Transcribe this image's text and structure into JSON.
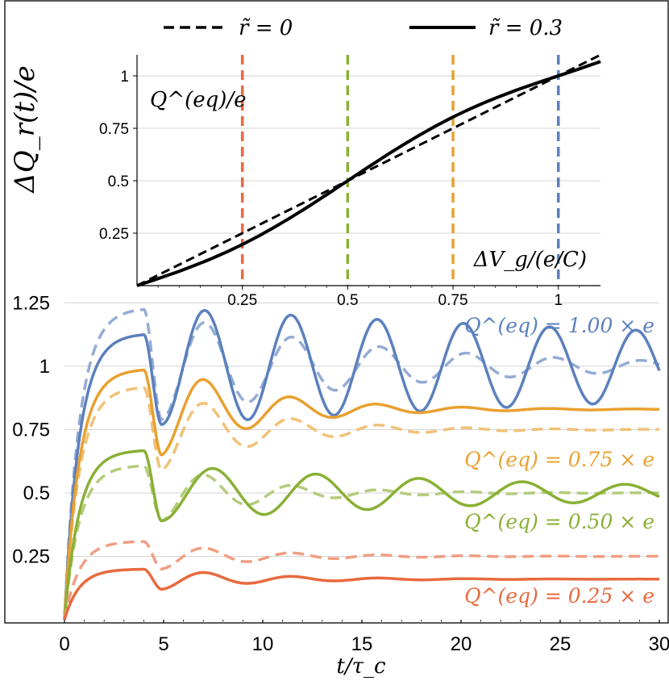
{
  "main_chart": {
    "type": "line",
    "ylabel": "ΔQ_r(t)/e",
    "xlabel": "t/τ_c",
    "xlim": [
      0,
      30
    ],
    "ylim": [
      0,
      1.35
    ],
    "x_ticks": [
      0,
      5,
      10,
      15,
      20,
      25,
      30
    ],
    "x_tick_labels": [
      "0",
      "5",
      "10",
      "15",
      "20",
      "25",
      "30"
    ],
    "y_ticks": [
      0.25,
      0.5,
      0.75,
      1,
      1.25
    ],
    "y_tick_labels": [
      "0.25",
      "0.5",
      "0.75",
      "1",
      "1.25"
    ],
    "grid": "horizontal",
    "series": [
      {
        "label": "Q^(eq) = 1.00 × e",
        "color": "#5b80bd",
        "qeq": 1.0,
        "solid": {
          "plateau": 1.13,
          "dip": 0.77,
          "final": 1.0,
          "amp": 0.2,
          "period": 4.35,
          "decay": 50
        },
        "dashed": {
          "plateau": 1.23,
          "dip": 0.79,
          "final": 1.0,
          "amp": 0.19,
          "period": 4.4,
          "decay": 11
        }
      },
      {
        "label": "Q^(eq) = 0.75 × e",
        "color": "#e9a030",
        "qeq": 0.75,
        "solid": {
          "plateau": 0.99,
          "dip": 0.65,
          "final": 0.83,
          "amp": 0.21,
          "period": 4.35,
          "decay": 5
        },
        "dashed": {
          "plateau": 0.92,
          "dip": 0.59,
          "final": 0.75,
          "amp": 0.18,
          "period": 4.4,
          "decay": 5
        }
      },
      {
        "label": "Q^(eq) = 0.50 × e",
        "color": "#8ab035",
        "qeq": 0.5,
        "solid": {
          "plateau": 0.67,
          "dip": 0.39,
          "final": 0.5,
          "amp": 0.12,
          "period": 5.2,
          "decay": 20
        },
        "dashed": {
          "plateau": 0.61,
          "dip": 0.39,
          "final": 0.5,
          "amp": 0.11,
          "period": 4.4,
          "decay": 5
        }
      },
      {
        "label": "Q^(eq) = 0.25 × e",
        "color": "#e86a3f",
        "qeq": 0.25,
        "solid": {
          "plateau": 0.2,
          "dip": 0.12,
          "final": 0.16,
          "amp": 0.04,
          "period": 4.4,
          "decay": 5
        },
        "dashed": {
          "plateau": 0.31,
          "dip": 0.2,
          "final": 0.25,
          "amp": 0.06,
          "period": 4.4,
          "decay": 5
        }
      }
    ]
  },
  "inset_chart": {
    "type": "line",
    "ylabel": "Q^(eq)/e",
    "xlabel": "ΔV_g/(e/C)",
    "xlim": [
      0,
      1.1
    ],
    "ylim": [
      0,
      1.1
    ],
    "x_ticks": [
      0.25,
      0.5,
      0.75,
      1
    ],
    "x_tick_labels": [
      "0.25",
      "0.5",
      "0.75",
      "1"
    ],
    "y_ticks": [
      0.25,
      0.5,
      0.75,
      1
    ],
    "y_tick_labels": [
      "0.25",
      "0.5",
      "0.75",
      "1"
    ],
    "grid": "horizontal",
    "vlines": [
      {
        "x": 0.25,
        "color": "#e86a3f"
      },
      {
        "x": 0.5,
        "color": "#8ab035"
      },
      {
        "x": 0.75,
        "color": "#e9a030"
      },
      {
        "x": 1.0,
        "color": "#5b80bd"
      }
    ],
    "curves": [
      {
        "name": "r̃ = 0",
        "style": "dashed",
        "r": 0
      },
      {
        "name": "r̃ = 0.3",
        "style": "solid",
        "r": 0.3
      }
    ]
  },
  "legend": {
    "placement": "top",
    "entries": [
      {
        "label": "r̃ = 0",
        "style": "dashed"
      },
      {
        "label": "r̃ = 0.3",
        "style": "solid"
      }
    ]
  }
}
